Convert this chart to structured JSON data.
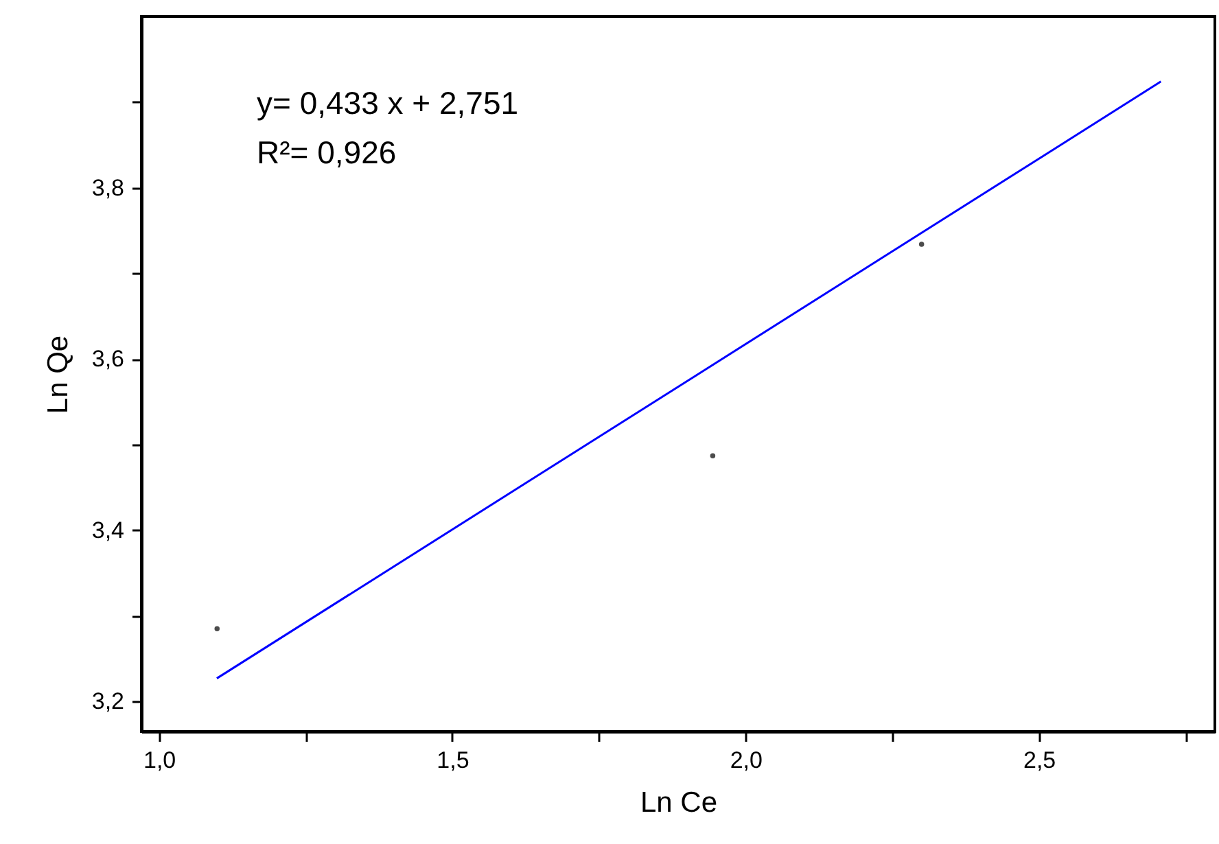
{
  "chart_data": {
    "type": "scatter",
    "xlabel": "Ln Ce",
    "ylabel": "Ln Qe",
    "annotations": [
      "y= 0,433 x  +  2,751",
      "R²= 0,926"
    ],
    "xlim": [
      0.97,
      2.8
    ],
    "ylim": [
      3.165,
      4.0
    ],
    "xticks": [
      {
        "value": 1,
        "label": "1,0"
      },
      {
        "value": 1.25,
        "label": null
      },
      {
        "value": 1.5,
        "label": "1,5"
      },
      {
        "value": 1.75,
        "label": null
      },
      {
        "value": 2,
        "label": "2,0"
      },
      {
        "value": 2.25,
        "label": null
      },
      {
        "value": 2.5,
        "label": "2,5"
      },
      {
        "value": 2.75,
        "label": null
      }
    ],
    "yticks": [
      {
        "value": 3.2,
        "label": "3,2"
      },
      {
        "value": 3.3,
        "label": null
      },
      {
        "value": 3.4,
        "label": "3,4"
      },
      {
        "value": 3.5,
        "label": null
      },
      {
        "value": 3.6,
        "label": "3,6"
      },
      {
        "value": 3.7,
        "label": null
      },
      {
        "value": 3.8,
        "label": "3,8"
      },
      {
        "value": 3.9,
        "label": null
      }
    ],
    "grid": false,
    "x": [
      1.099,
      1.944,
      2.3
    ],
    "series": [
      {
        "color": "#000000",
        "marker": "circle",
        "values": [
          3.285,
          3.487,
          3.734
        ]
      },
      {
        "type": "line",
        "color": "#0000ff",
        "x": [
          1.0986,
          2.708
        ],
        "values": [
          3.227,
          3.924
        ]
      }
    ]
  }
}
